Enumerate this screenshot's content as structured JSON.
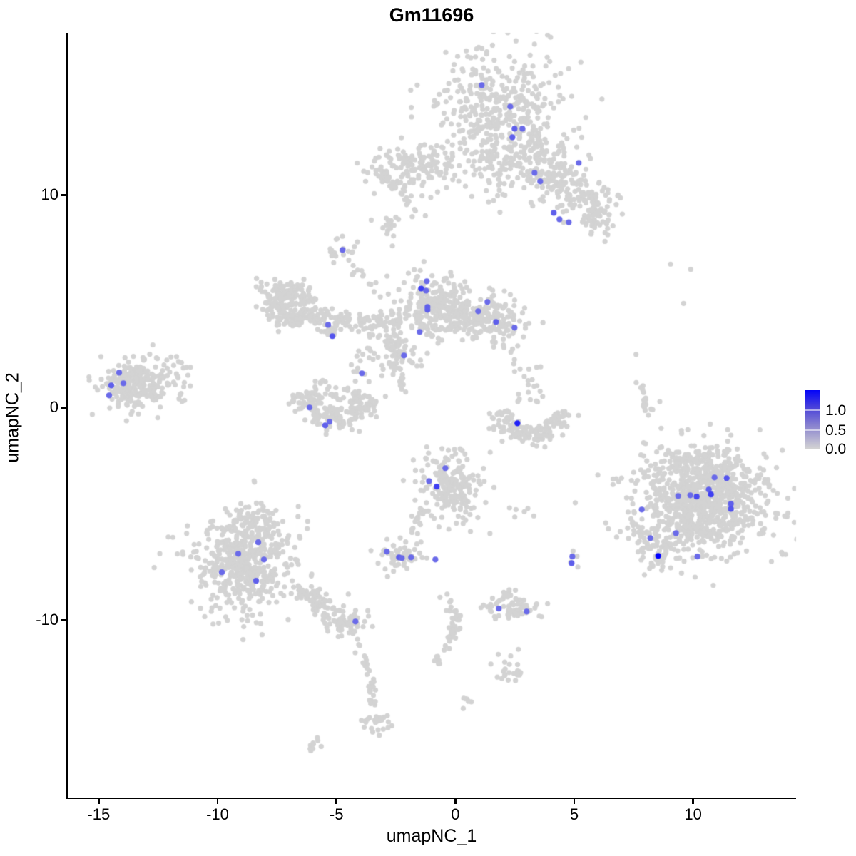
{
  "chart_data": {
    "type": "scatter",
    "title": "Gm11696",
    "xlabel": "umapNC_1",
    "ylabel": "umapNC_2",
    "xlim": [
      -16.3,
      14.3
    ],
    "ylim": [
      -18.35,
      17.6
    ],
    "grid": false,
    "x_ticks": {
      "values": [
        -15,
        -10,
        -5,
        0,
        5,
        10
      ],
      "labels": [
        "-15",
        "-10",
        "-5",
        "0",
        "5",
        "10"
      ]
    },
    "y_ticks": {
      "values": [
        10,
        0,
        -10
      ],
      "labels": [
        "10",
        "0",
        "-10"
      ]
    },
    "colors": {
      "low": "#D3D3D3",
      "high": "#0000FF",
      "background": "#FFFFFF"
    },
    "legend": {
      "labels": [
        "1.0",
        "0.5",
        "0.0"
      ],
      "fractions": [
        0.345,
        0.68,
        1.0
      ],
      "position": "right"
    },
    "clusters": [
      {
        "t": "g",
        "x": 1.85,
        "y": 13.95,
        "sx": 1.3,
        "sy": 1.5,
        "n": 420
      },
      {
        "t": "g",
        "x": 2.6,
        "y": 11.7,
        "sx": 1.5,
        "sy": 1.0,
        "n": 150
      },
      {
        "t": "l",
        "x1": 3.6,
        "y1": 11.9,
        "x2": 6.2,
        "y2": 8.7,
        "j": 0.5,
        "n": 150
      },
      {
        "t": "g",
        "x": 5.75,
        "y": 9.3,
        "sx": 0.45,
        "sy": 0.5,
        "n": 50
      },
      {
        "t": "g",
        "x": -1.7,
        "y": 11.35,
        "sx": 0.95,
        "sy": 0.5,
        "n": 140
      },
      {
        "t": "l",
        "x1": -3.25,
        "y1": 11.3,
        "x2": -2.55,
        "y2": 10.4,
        "j": 0.18,
        "n": 22
      },
      {
        "t": "l",
        "x1": -2.05,
        "y1": 10.3,
        "x2": -1.75,
        "y2": 9.2,
        "j": 0.15,
        "n": 14
      },
      {
        "t": "g",
        "x": -2.9,
        "y": 8.6,
        "sx": 0.32,
        "sy": 0.28,
        "n": 16
      },
      {
        "t": "g",
        "x": -0.85,
        "y": 4.85,
        "sx": 0.75,
        "sy": 0.8,
        "n": 230
      },
      {
        "t": "g",
        "x": 1.5,
        "y": 4.15,
        "sx": 0.8,
        "sy": 0.55,
        "n": 170
      },
      {
        "t": "l",
        "x1": -0.2,
        "y1": 4.4,
        "x2": 1.0,
        "y2": 4.2,
        "j": 0.3,
        "n": 50
      },
      {
        "t": "l",
        "x1": -4.5,
        "y1": 6.8,
        "x2": -3.3,
        "y2": 5.5,
        "j": 0.15,
        "n": 12
      },
      {
        "t": "g",
        "x": -4.85,
        "y": 7.35,
        "sx": 0.3,
        "sy": 0.35,
        "n": 20
      },
      {
        "t": "r",
        "x": -6.9,
        "y": 4.75,
        "r": 0.75,
        "jr": 0.25,
        "a0": 0,
        "a1": 360,
        "n": 150
      },
      {
        "t": "g",
        "x": -7.35,
        "y": 5.3,
        "sx": 0.5,
        "sy": 0.4,
        "n": 60
      },
      {
        "t": "l",
        "x1": -6.1,
        "y1": 4.3,
        "x2": -4.9,
        "y2": 4.1,
        "j": 0.25,
        "n": 50
      },
      {
        "t": "l",
        "x1": -4.9,
        "y1": 4.2,
        "x2": -2.3,
        "y2": 3.85,
        "j": 0.22,
        "n": 70
      },
      {
        "t": "l",
        "x1": -5.4,
        "y1": 3.9,
        "x2": -5.1,
        "y2": 3.3,
        "j": 0.12,
        "n": 12
      },
      {
        "t": "b",
        "x1": -4.4,
        "y1": 1.0,
        "x2": -2.3,
        "y2": 3.6,
        "n": 35
      },
      {
        "t": "g",
        "x": -2.3,
        "y": 2.5,
        "sx": 0.42,
        "sy": 0.42,
        "n": 55
      },
      {
        "t": "l",
        "x1": -2.4,
        "y1": 1.7,
        "x2": -2.15,
        "y2": 0.8,
        "j": 0.12,
        "n": 8
      },
      {
        "t": "g",
        "x": -13.55,
        "y": 1.05,
        "sx": 0.72,
        "sy": 0.62,
        "n": 230
      },
      {
        "t": "g",
        "x": -12.15,
        "y": 1.3,
        "sx": 0.5,
        "sy": 0.5,
        "n": 30
      },
      {
        "t": "b",
        "x1": -11.9,
        "y1": 0.2,
        "x2": -11.2,
        "y2": 1.6,
        "n": 8
      },
      {
        "t": "r",
        "x": -5.05,
        "y": 0.95,
        "r": 1.45,
        "jr": 0.3,
        "a0": 190,
        "a1": 350,
        "n": 190
      },
      {
        "t": "b",
        "x1": -5.9,
        "y1": 0.3,
        "x2": -4.2,
        "y2": 1.3,
        "n": 25
      },
      {
        "t": "r",
        "x": 3.2,
        "y": 0.2,
        "r": 1.45,
        "jr": 0.28,
        "a0": 195,
        "a1": 345,
        "n": 150
      },
      {
        "t": "b",
        "x1": 2.35,
        "y1": 0.2,
        "x2": 3.85,
        "y2": 2.3,
        "n": 22
      },
      {
        "t": "g",
        "x": -0.15,
        "y": -3.75,
        "sx": 0.72,
        "sy": 0.8,
        "n": 210
      },
      {
        "t": "l",
        "x1": -1.35,
        "y1": -4.7,
        "x2": -1.85,
        "y2": -6.0,
        "j": 0.12,
        "n": 14
      },
      {
        "t": "g",
        "x": 10.35,
        "y": -4.4,
        "sx": 1.35,
        "sy": 1.15,
        "n": 850
      },
      {
        "t": "g",
        "x": 10.1,
        "y": -2.55,
        "sx": 1.0,
        "sy": 0.5,
        "n": 80
      },
      {
        "t": "l",
        "x1": 8.15,
        "y1": -5.8,
        "x2": 8.75,
        "y2": -7.35,
        "j": 0.35,
        "n": 70
      },
      {
        "t": "g",
        "x": 10.35,
        "y": -4.4,
        "sx": 1.95,
        "sy": 1.65,
        "n": 70
      },
      {
        "t": "g",
        "x": -8.9,
        "y": -7.2,
        "sx": 1.05,
        "sy": 1.15,
        "n": 520
      },
      {
        "t": "g",
        "x": -8.5,
        "y": -5.35,
        "sx": 0.55,
        "sy": 0.55,
        "n": 60
      },
      {
        "t": "l",
        "x1": -6.9,
        "y1": -8.3,
        "x2": -5.0,
        "y2": -9.85,
        "j": 0.3,
        "n": 90
      },
      {
        "t": "g",
        "x": -4.55,
        "y": -10.1,
        "sx": 0.42,
        "sy": 0.35,
        "n": 55
      },
      {
        "t": "g",
        "x": -2.35,
        "y": -6.9,
        "sx": 0.55,
        "sy": 0.28,
        "n": 55
      },
      {
        "t": "p",
        "pts": [
          [
            -2.95,
            -7.6
          ],
          [
            -2.85,
            -7.95
          ],
          [
            -2.6,
            -7.7
          ]
        ]
      },
      {
        "t": "g",
        "x": 2.4,
        "y": -9.45,
        "sx": 0.72,
        "sy": 0.28,
        "n": 65
      },
      {
        "t": "b",
        "x1": 1.9,
        "y1": -9.05,
        "x2": 2.6,
        "y2": -8.55,
        "n": 6
      },
      {
        "t": "p",
        "pts": [
          [
            4.95,
            -6.75
          ],
          [
            5.12,
            -7.0
          ],
          [
            4.85,
            -7.28
          ],
          [
            5.15,
            -7.5
          ]
        ]
      },
      {
        "t": "l",
        "x1": -0.35,
        "y1": -8.85,
        "x2": 0.1,
        "y2": -10.3,
        "j": 0.12,
        "n": 22
      },
      {
        "t": "l",
        "x1": 0.1,
        "y1": -10.3,
        "x2": -0.8,
        "y2": -11.95,
        "j": 0.12,
        "n": 24
      },
      {
        "t": "g",
        "x": 2.35,
        "y": -12.35,
        "sx": 0.35,
        "sy": 0.3,
        "n": 22
      },
      {
        "t": "g",
        "x": 0.6,
        "y": -13.8,
        "sx": 0.14,
        "sy": 0.14,
        "n": 6
      },
      {
        "t": "l",
        "x1": -4.1,
        "y1": -11.0,
        "x2": -3.3,
        "y2": -14.4,
        "j": 0.12,
        "n": 30
      },
      {
        "t": "g",
        "x": -3.35,
        "y": -14.85,
        "sx": 0.3,
        "sy": 0.25,
        "n": 22
      },
      {
        "t": "l",
        "x1": -6.15,
        "y1": -16.05,
        "x2": -5.7,
        "y2": -15.6,
        "j": 0.1,
        "n": 10
      },
      {
        "t": "l",
        "x1": 7.75,
        "y1": 1.05,
        "x2": 8.1,
        "y2": -0.5,
        "j": 0.12,
        "n": 16
      },
      {
        "t": "p",
        "pts": [
          [
            9.05,
            6.75
          ],
          [
            9.9,
            6.5
          ],
          [
            9.6,
            4.9
          ],
          [
            8.0,
            -1.7
          ],
          [
            7.6,
            2.5
          ],
          [
            8.3,
            -0.1
          ],
          [
            7.5,
            -3.05
          ]
        ]
      },
      {
        "t": "p",
        "pts": [
          [
            2.55,
            -4.8
          ],
          [
            2.9,
            -4.9
          ],
          [
            3.3,
            -5.1
          ],
          [
            2.5,
            -5.15
          ],
          [
            3.05,
            -4.75
          ]
        ]
      }
    ],
    "expressing_cells": [
      [
        1.11,
        15.17,
        0.5
      ],
      [
        2.31,
        14.16,
        0.5
      ],
      [
        2.49,
        13.12,
        0.55
      ],
      [
        2.82,
        13.12,
        0.5
      ],
      [
        2.4,
        12.72,
        0.55
      ],
      [
        3.33,
        11.04,
        0.5
      ],
      [
        3.57,
        10.64,
        0.5
      ],
      [
        5.19,
        11.51,
        0.5
      ],
      [
        4.14,
        9.16,
        0.55
      ],
      [
        4.38,
        8.86,
        0.5
      ],
      [
        4.77,
        8.72,
        0.5
      ],
      [
        -4.74,
        7.42,
        0.5
      ],
      [
        -1.2,
        5.94,
        0.5
      ],
      [
        -1.44,
        5.6,
        0.7
      ],
      [
        -1.23,
        5.5,
        0.5
      ],
      [
        -1.17,
        4.73,
        0.55
      ],
      [
        -1.17,
        4.6,
        0.55
      ],
      [
        -1.5,
        3.56,
        0.5
      ],
      [
        1.35,
        4.97,
        0.5
      ],
      [
        0.96,
        4.53,
        0.5
      ],
      [
        1.71,
        4.03,
        0.55
      ],
      [
        2.49,
        3.76,
        0.5
      ],
      [
        -2.16,
        2.45,
        0.5
      ],
      [
        -3.93,
        1.61,
        0.5
      ],
      [
        -5.35,
        3.89,
        0.5
      ],
      [
        -5.17,
        3.36,
        0.6
      ],
      [
        -6.13,
        0.0,
        0.5
      ],
      [
        -5.47,
        -0.84,
        0.55
      ],
      [
        -5.29,
        -0.67,
        0.5
      ],
      [
        2.61,
        -0.74,
        0.85
      ],
      [
        -14.14,
        1.64,
        0.5
      ],
      [
        -14.47,
        1.04,
        0.55
      ],
      [
        -13.96,
        1.14,
        0.5
      ],
      [
        -14.56,
        0.57,
        0.5
      ],
      [
        10.9,
        -3.29,
        0.5
      ],
      [
        11.41,
        -3.32,
        0.6
      ],
      [
        10.66,
        -3.86,
        0.55
      ],
      [
        10.75,
        -4.09,
        0.7
      ],
      [
        9.37,
        -4.16,
        0.5
      ],
      [
        9.88,
        -4.13,
        0.5
      ],
      [
        10.15,
        -4.19,
        0.65
      ],
      [
        11.59,
        -4.53,
        0.55
      ],
      [
        11.59,
        -4.77,
        0.6
      ],
      [
        7.84,
        -4.8,
        0.5
      ],
      [
        9.28,
        -5.91,
        0.5
      ],
      [
        8.2,
        -6.14,
        0.5
      ],
      [
        8.53,
        -6.98,
        1.0
      ],
      [
        10.18,
        -7.01,
        0.5
      ],
      [
        -8.29,
        -6.34,
        0.5
      ],
      [
        -9.13,
        -6.88,
        0.5
      ],
      [
        -8.05,
        -7.15,
        0.5
      ],
      [
        -9.82,
        -7.75,
        0.5
      ],
      [
        -8.38,
        -8.15,
        0.55
      ],
      [
        -4.2,
        -10.07,
        0.5
      ],
      [
        -0.42,
        -2.85,
        0.5
      ],
      [
        -1.11,
        -3.46,
        0.5
      ],
      [
        -0.78,
        -3.72,
        0.7
      ],
      [
        -2.88,
        -6.78,
        0.5
      ],
      [
        -2.37,
        -7.05,
        0.55
      ],
      [
        -2.25,
        -7.08,
        0.5
      ],
      [
        -1.86,
        -7.05,
        0.5
      ],
      [
        -0.84,
        -7.15,
        0.5
      ],
      [
        1.83,
        -9.46,
        0.5
      ],
      [
        3.0,
        -9.6,
        0.5
      ],
      [
        4.92,
        -7.01,
        0.5
      ],
      [
        4.89,
        -7.32,
        0.55
      ]
    ]
  }
}
